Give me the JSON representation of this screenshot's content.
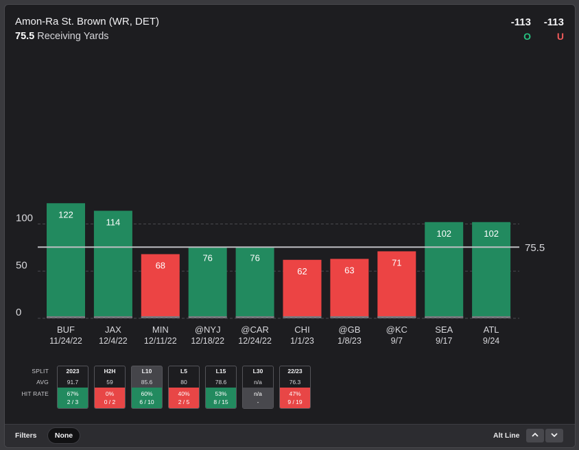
{
  "header": {
    "player": "Amon-Ra St. Brown (WR, DET)",
    "line": "75.5",
    "market": "Receiving Yards",
    "over_odds": "-113",
    "under_odds": "-113",
    "over_label": "O",
    "under_label": "U"
  },
  "chart_data": {
    "type": "bar",
    "categories": [
      "BUF",
      "JAX",
      "MIN",
      "@NYJ",
      "@CAR",
      "CHI",
      "@GB",
      "@KC",
      "SEA",
      "ATL"
    ],
    "dates": [
      "11/24/22",
      "12/4/22",
      "12/11/22",
      "12/18/22",
      "12/24/22",
      "1/1/23",
      "1/8/23",
      "9/7",
      "9/17",
      "9/24"
    ],
    "values": [
      122,
      114,
      68,
      76,
      76,
      62,
      63,
      71,
      102,
      102
    ],
    "line": 75.5,
    "line_label": "75.5",
    "y_ticks": [
      0,
      50,
      100
    ],
    "ylim": [
      0,
      128
    ],
    "over_color": "#228a5f",
    "under_color": "#ec4444",
    "grid": "dashed"
  },
  "splits": {
    "labels": {
      "split": "SPLIT",
      "avg": "AVG",
      "hit_rate": "HIT RATE"
    },
    "items": [
      {
        "name": "2023",
        "avg": "91.7",
        "pct": "67%",
        "frac": "2 / 3",
        "status": "green"
      },
      {
        "name": "H2H",
        "avg": "59",
        "pct": "0%",
        "frac": "0 / 2",
        "status": "red"
      },
      {
        "name": "L10",
        "avg": "85.6",
        "pct": "60%",
        "frac": "6 / 10",
        "status": "green",
        "selected": true
      },
      {
        "name": "L5",
        "avg": "80",
        "pct": "40%",
        "frac": "2 / 5",
        "status": "red"
      },
      {
        "name": "L15",
        "avg": "78.6",
        "pct": "53%",
        "frac": "8 / 15",
        "status": "green"
      },
      {
        "name": "L30",
        "avg": "n/a",
        "pct": "n/a",
        "frac": "-",
        "status": "grey"
      },
      {
        "name": "22/23",
        "avg": "76.3",
        "pct": "47%",
        "frac": "9 / 19",
        "status": "red"
      }
    ]
  },
  "footer": {
    "filters_label": "Filters",
    "filter_value": "None",
    "alt_line_label": "Alt Line",
    "up_icon": "chevron-up-icon",
    "down_icon": "chevron-down-icon"
  }
}
